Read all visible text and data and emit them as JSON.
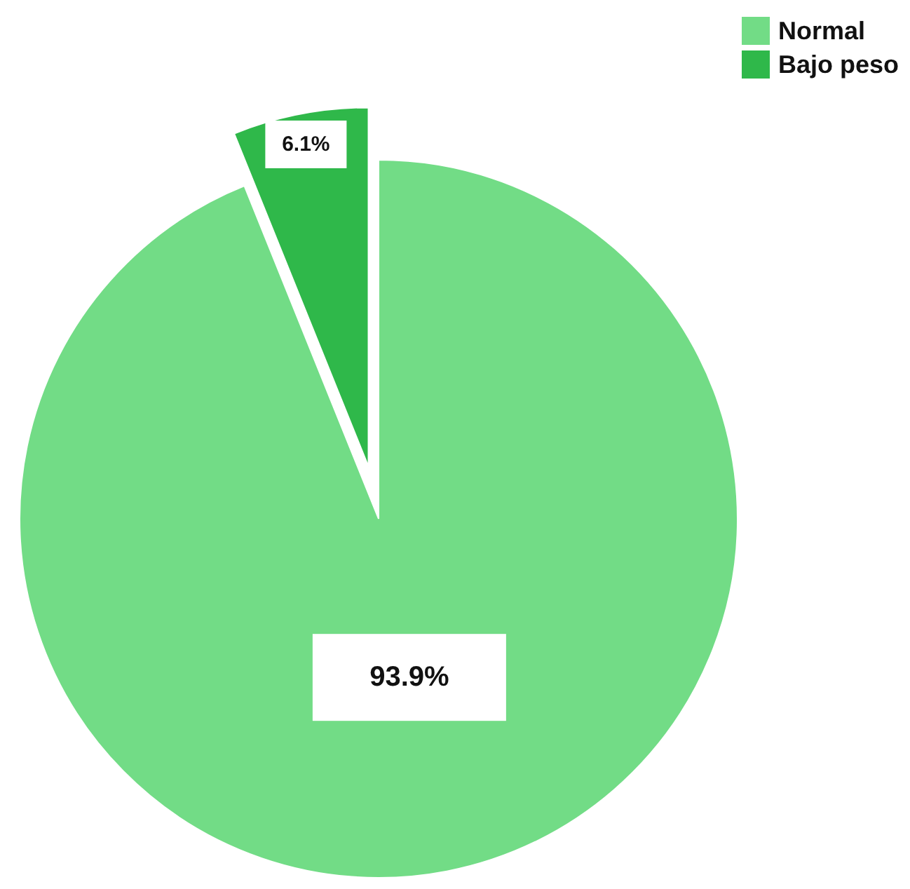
{
  "chart_data": {
    "type": "pie",
    "categories": [
      "Normal",
      "Bajo peso"
    ],
    "values": [
      93.9,
      6.1
    ],
    "colors": [
      "#72dc86",
      "#2fb84a"
    ],
    "value_labels": [
      "93.9%",
      "6.1%"
    ],
    "legend": "top right"
  }
}
